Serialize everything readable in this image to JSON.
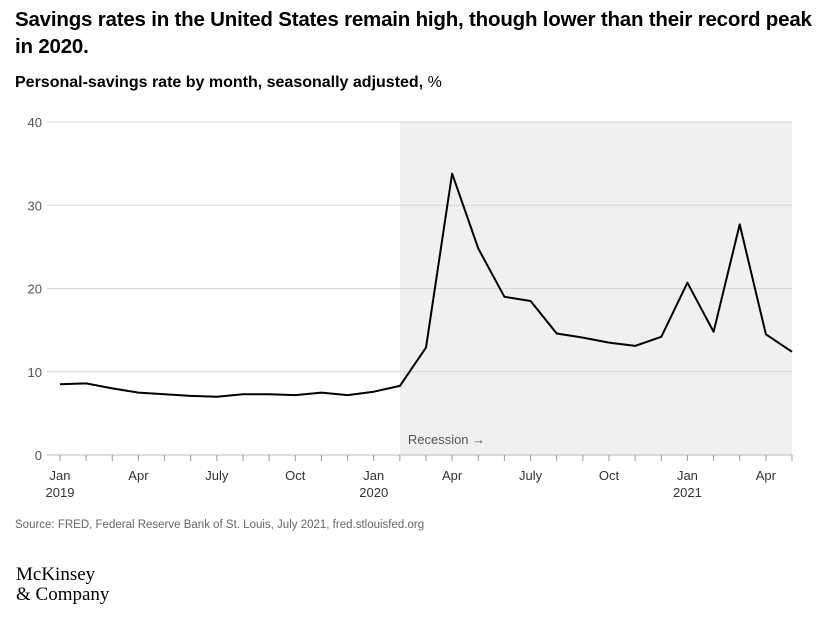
{
  "title": "Savings rates in the United States remain high, though lower than their record peak in 2020.",
  "subtitle": "Personal-savings rate by month, seasonally adjusted,",
  "subtitle_unit": "%",
  "source": "Source: FRED, Federal Reserve Bank of St. Louis, July 2021, fred.stlouisfed.org",
  "logo": {
    "line1": "McKinsey",
    "line2": "& Company"
  },
  "chart_data": {
    "type": "line",
    "title": "Savings rates in the United States remain high, though lower than their record peak in 2020.",
    "ylabel": "Personal-savings rate by month, seasonally adjusted, %",
    "ylim": [
      0,
      40
    ],
    "yticks": [
      0,
      10,
      20,
      30,
      40
    ],
    "grid": true,
    "xtick_labels": [
      {
        "index": 0,
        "label": "Jan",
        "year": "2019"
      },
      {
        "index": 3,
        "label": "Apr"
      },
      {
        "index": 6,
        "label": "July"
      },
      {
        "index": 9,
        "label": "Oct"
      },
      {
        "index": 12,
        "label": "Jan",
        "year": "2020"
      },
      {
        "index": 15,
        "label": "Apr"
      },
      {
        "index": 18,
        "label": "July"
      },
      {
        "index": 21,
        "label": "Oct"
      },
      {
        "index": 24,
        "label": "Jan",
        "year": "2021"
      },
      {
        "index": 27,
        "label": "Apr"
      }
    ],
    "x": [
      "2019-01",
      "2019-02",
      "2019-03",
      "2019-04",
      "2019-05",
      "2019-06",
      "2019-07",
      "2019-08",
      "2019-09",
      "2019-10",
      "2019-11",
      "2019-12",
      "2020-01",
      "2020-02",
      "2020-03",
      "2020-04",
      "2020-05",
      "2020-06",
      "2020-07",
      "2020-08",
      "2020-09",
      "2020-10",
      "2020-11",
      "2020-12",
      "2021-01",
      "2021-02",
      "2021-03",
      "2021-04",
      "2021-05"
    ],
    "series": [
      {
        "values": [
          8.5,
          8.6,
          8.0,
          7.5,
          7.3,
          7.1,
          7.0,
          7.3,
          7.3,
          7.2,
          7.5,
          7.2,
          7.6,
          8.3,
          12.9,
          33.8,
          24.8,
          19.0,
          18.5,
          14.6,
          14.1,
          13.5,
          13.1,
          14.2,
          20.7,
          14.8,
          27.7,
          14.5,
          12.4
        ]
      }
    ],
    "shaded_region": {
      "label": "Recession →",
      "start": "2020-02",
      "end": "2021-05"
    }
  }
}
